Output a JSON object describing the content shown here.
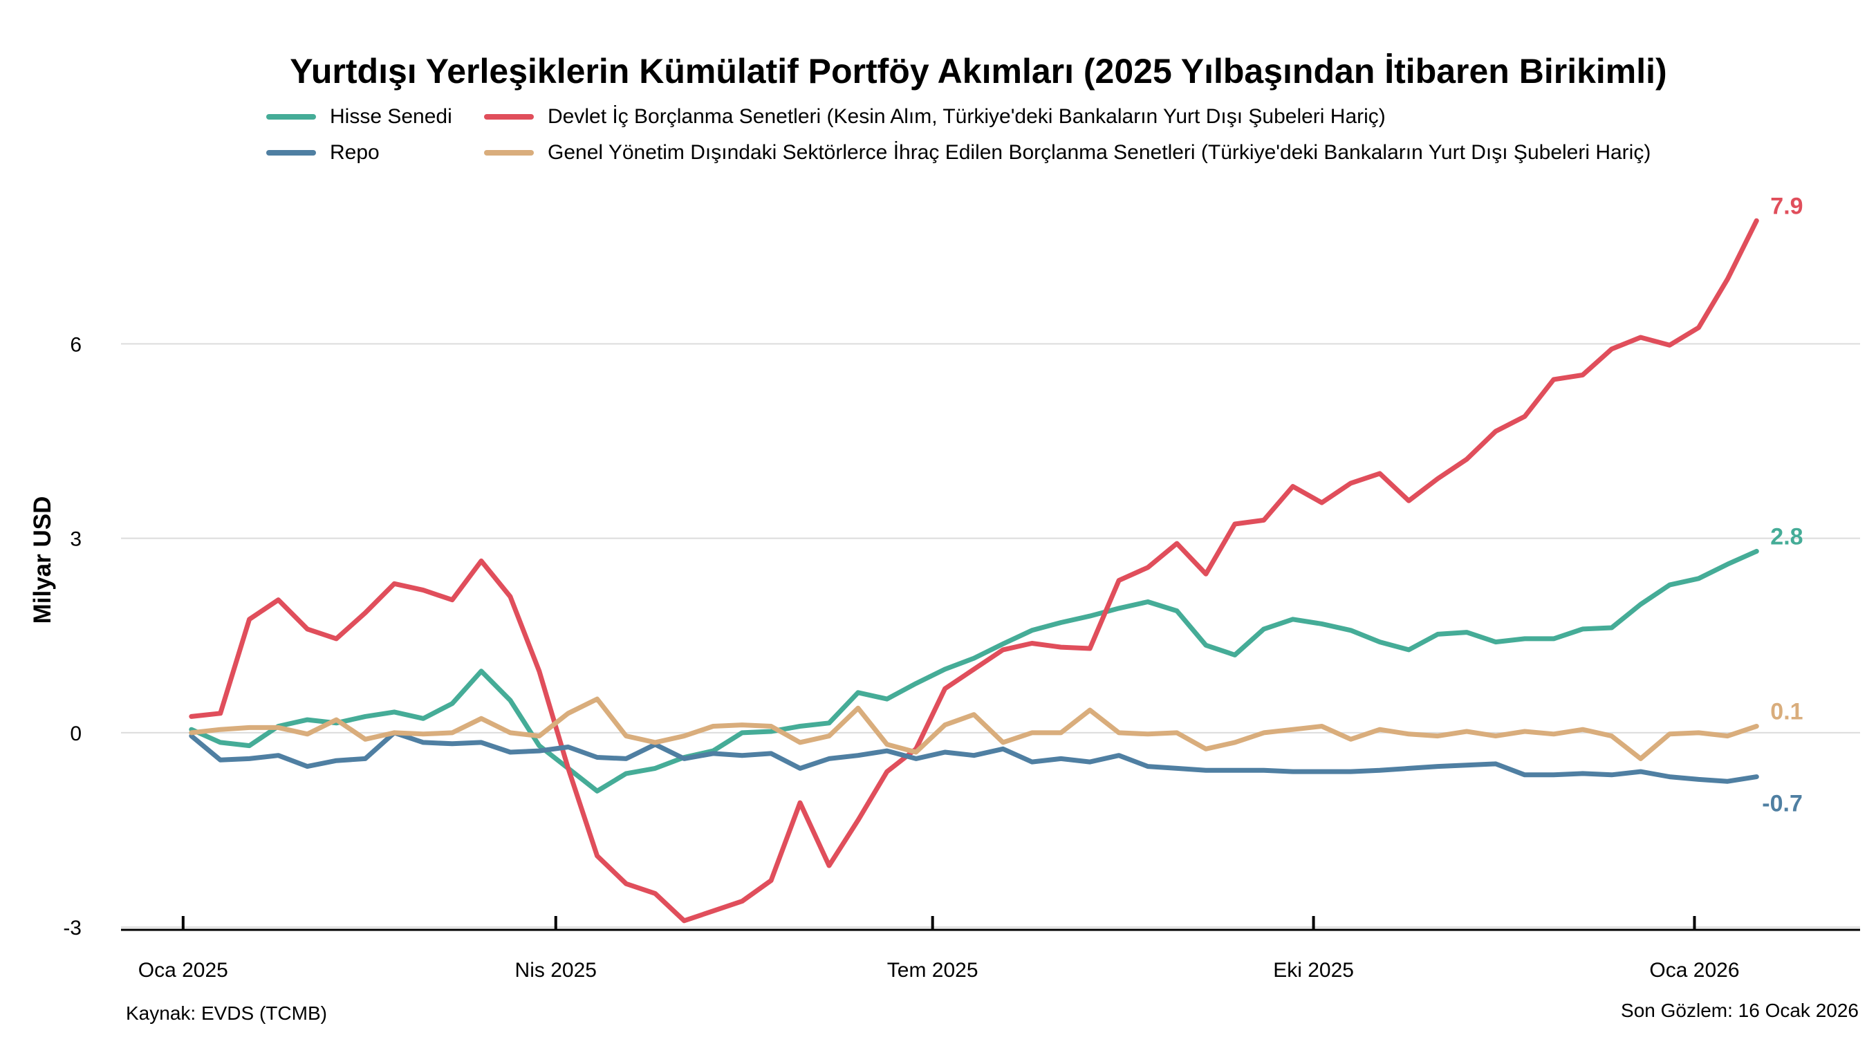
{
  "chart_data": {
    "type": "line",
    "title": "Yurtdışı Yerleşiklerin Kümülatif Portföy Akımları (2025 Yılbaşından İtibaren Birikimli)",
    "ylabel": "Milyar USD",
    "xlabel": "",
    "ylim": [
      -3.5,
      8.5
    ],
    "yticks": [
      -3,
      0,
      3,
      6
    ],
    "ytick_labels": [
      "-3",
      "0",
      "3",
      "6"
    ],
    "xlim": [
      "2024-12-17",
      "2026-02-10"
    ],
    "xticks": [
      "2025-01-01",
      "2025-04-01",
      "2025-07-01",
      "2025-10-01",
      "2026-01-01"
    ],
    "xtick_labels": [
      "Oca 2025",
      "Nis 2025",
      "Tem 2025",
      "Eki 2025",
      "Oca 2026"
    ],
    "grid": "horizontal",
    "legend_position": "top",
    "x": [
      "2025-01-03",
      "2025-01-10",
      "2025-01-17",
      "2025-01-24",
      "2025-01-31",
      "2025-02-07",
      "2025-02-14",
      "2025-02-21",
      "2025-02-28",
      "2025-03-07",
      "2025-03-14",
      "2025-03-21",
      "2025-03-28",
      "2025-04-04",
      "2025-04-11",
      "2025-04-18",
      "2025-04-25",
      "2025-05-02",
      "2025-05-09",
      "2025-05-16",
      "2025-05-23",
      "2025-05-30",
      "2025-06-06",
      "2025-06-13",
      "2025-06-20",
      "2025-06-27",
      "2025-07-04",
      "2025-07-11",
      "2025-07-18",
      "2025-07-25",
      "2025-08-01",
      "2025-08-08",
      "2025-08-15",
      "2025-08-22",
      "2025-08-29",
      "2025-09-05",
      "2025-09-12",
      "2025-09-19",
      "2025-09-26",
      "2025-10-03",
      "2025-10-10",
      "2025-10-17",
      "2025-10-24",
      "2025-10-31",
      "2025-11-07",
      "2025-11-14",
      "2025-11-21",
      "2025-11-28",
      "2025-12-05",
      "2025-12-12",
      "2025-12-19",
      "2025-12-26",
      "2026-01-02",
      "2026-01-09",
      "2026-01-16"
    ],
    "series": [
      {
        "name": "Hisse Senedi",
        "color": "#45ac97",
        "end_label": "2.8",
        "values": [
          0.05,
          -0.15,
          -0.2,
          0.1,
          0.2,
          0.15,
          0.25,
          0.32,
          0.22,
          0.45,
          0.95,
          0.5,
          -0.2,
          -0.55,
          -0.9,
          -0.63,
          -0.55,
          -0.38,
          -0.28,
          0.0,
          0.02,
          0.1,
          0.15,
          0.62,
          0.52,
          0.76,
          0.98,
          1.15,
          1.37,
          1.58,
          1.7,
          1.8,
          1.92,
          2.02,
          1.88,
          1.35,
          1.2,
          1.6,
          1.75,
          1.68,
          1.58,
          1.4,
          1.28,
          1.52,
          1.55,
          1.4,
          1.45,
          1.45,
          1.6,
          1.62,
          1.98,
          2.28,
          2.38,
          2.6,
          2.8
        ]
      },
      {
        "name": "Devlet İç Borçlanma Senetleri (Kesin Alım, Türkiye'deki Bankaların Yurt Dışı Şubeleri Hariç)",
        "color": "#e04e5b",
        "end_label": "7.9",
        "values": [
          0.25,
          0.3,
          1.75,
          2.05,
          1.6,
          1.45,
          1.85,
          2.3,
          2.2,
          2.05,
          2.65,
          2.1,
          0.95,
          -0.55,
          -1.9,
          -2.33,
          -2.48,
          -2.9,
          -2.75,
          -2.6,
          -2.28,
          -1.08,
          -2.05,
          -1.35,
          -0.6,
          -0.25,
          0.68,
          0.98,
          1.28,
          1.38,
          1.32,
          1.3,
          2.35,
          2.55,
          2.92,
          2.45,
          3.22,
          3.28,
          3.8,
          3.55,
          3.85,
          4.0,
          3.58,
          3.92,
          4.22,
          4.65,
          4.88,
          5.45,
          5.52,
          5.92,
          6.1,
          5.98,
          6.25,
          7.0,
          7.9
        ]
      },
      {
        "name": "Repo",
        "color": "#4f7fa2",
        "end_label": "-0.7",
        "values": [
          -0.05,
          -0.42,
          -0.4,
          -0.35,
          -0.52,
          -0.43,
          -0.4,
          0.0,
          -0.15,
          -0.17,
          -0.15,
          -0.3,
          -0.28,
          -0.22,
          -0.38,
          -0.4,
          -0.18,
          -0.4,
          -0.32,
          -0.35,
          -0.32,
          -0.55,
          -0.4,
          -0.35,
          -0.28,
          -0.4,
          -0.3,
          -0.35,
          -0.25,
          -0.45,
          -0.4,
          -0.45,
          -0.35,
          -0.52,
          -0.55,
          -0.58,
          -0.58,
          -0.58,
          -0.6,
          -0.6,
          -0.6,
          -0.58,
          -0.55,
          -0.52,
          -0.5,
          -0.48,
          -0.65,
          -0.65,
          -0.63,
          -0.65,
          -0.6,
          -0.68,
          -0.72,
          -0.75,
          -0.68
        ]
      },
      {
        "name": "Genel Yönetim Dışındaki Sektörlerce İhraç Edilen Borçlanma Senetleri (Türkiye'deki Bankaların Yurt Dışı Şubeleri Hariç)",
        "color": "#d9ad7c",
        "end_label": "0.1",
        "values": [
          0.0,
          0.05,
          0.08,
          0.08,
          -0.02,
          0.2,
          -0.1,
          0.0,
          -0.02,
          0.0,
          0.22,
          0.0,
          -0.05,
          0.3,
          0.52,
          -0.05,
          -0.15,
          -0.05,
          0.1,
          0.12,
          0.1,
          -0.15,
          -0.05,
          0.38,
          -0.18,
          -0.3,
          0.12,
          0.28,
          -0.15,
          0.0,
          0.0,
          0.35,
          0.0,
          -0.02,
          0.0,
          -0.25,
          -0.15,
          0.0,
          0.05,
          0.1,
          -0.1,
          0.05,
          -0.02,
          -0.05,
          0.02,
          -0.05,
          0.02,
          -0.02,
          0.05,
          -0.05,
          -0.4,
          -0.02,
          0.0,
          -0.05,
          0.1
        ]
      }
    ],
    "source_note": "Kaynak: EVDS (TCMB)",
    "last_obs_note": "Son Gözlem: 16 Ocak 2026"
  }
}
